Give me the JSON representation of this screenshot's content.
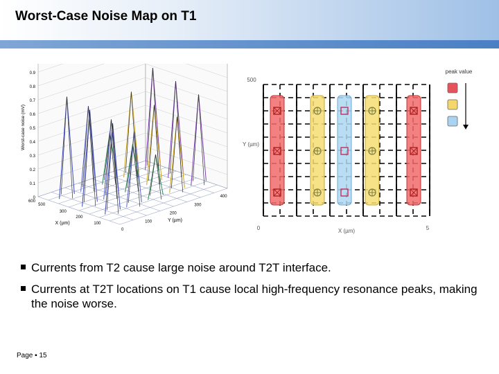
{
  "slide": {
    "title": "Worst-Case Noise Map on T1",
    "footer": {
      "page_label": "Page",
      "page_number": "15"
    }
  },
  "bullets": [
    "Currents from T2 cause large noise around T2T interface.",
    "Currents at T2T locations on T1 cause local high-frequency resonance peaks, making the noise worse."
  ],
  "chart_data": [
    {
      "type": "surface",
      "ylabel": "Worst-case noise (mV)",
      "xlabel": "X (µm)",
      "ylabel_depth": "Y (µm)",
      "z_ticks": [
        "0.9",
        "0.8",
        "0.7",
        "0.6",
        "0.5",
        "0.4",
        "0.3",
        "0.2",
        "0.1",
        "0"
      ],
      "x_ticks": [
        "600",
        "500",
        "300",
        "200",
        "100"
      ],
      "y_ticks": [
        "0",
        "100",
        "200",
        "300",
        "400"
      ],
      "peaks": [
        {
          "row": 0,
          "col": 0,
          "value": 0.74
        },
        {
          "row": 0,
          "col": 1,
          "value": 0.62
        },
        {
          "row": 0,
          "col": 2,
          "value": 0.38
        },
        {
          "row": 0,
          "col": 3,
          "value": 0.62
        },
        {
          "row": 0,
          "col": 4,
          "value": 0.74
        },
        {
          "row": 1,
          "col": 0,
          "value": 0.7
        },
        {
          "row": 1,
          "col": 1,
          "value": 0.58
        },
        {
          "row": 1,
          "col": 2,
          "value": 0.35
        },
        {
          "row": 1,
          "col": 3,
          "value": 0.58
        },
        {
          "row": 1,
          "col": 4,
          "value": 0.7
        },
        {
          "row": 2,
          "col": 0,
          "value": 0.66
        },
        {
          "row": 2,
          "col": 1,
          "value": 0.55
        },
        {
          "row": 2,
          "col": 2,
          "value": 0.33
        },
        {
          "row": 2,
          "col": 3,
          "value": 0.55
        },
        {
          "row": 2,
          "col": 4,
          "value": 0.66
        }
      ]
    },
    {
      "type": "layout-map",
      "y_axis_label": "Y (µm)",
      "x_axis_label": "X (µm)",
      "y_max_label": "500",
      "origin_label": "0",
      "x_max_label": "5",
      "legend_title": "peak value",
      "legend_colors": [
        "#e8525a",
        "#f5d66a",
        "#a9d3f0"
      ],
      "columns": [
        {
          "fill": "#f26b6b",
          "stroke": "#c03030",
          "marker": "square-x",
          "marker_color": "#b02020"
        },
        {
          "fill": "#f6dd72",
          "stroke": "#c8a830",
          "marker": "circle-plus",
          "marker_color": "#808040"
        },
        {
          "fill": "#add8f2",
          "stroke": "#6fa8d0",
          "marker": "square",
          "marker_color": "#c03060"
        },
        {
          "fill": "#f6dd72",
          "stroke": "#c8a830",
          "marker": "circle-plus",
          "marker_color": "#808040"
        },
        {
          "fill": "#f26b6b",
          "stroke": "#c03030",
          "marker": "square-x",
          "marker_color": "#b02020"
        }
      ],
      "rows": 3
    }
  ]
}
